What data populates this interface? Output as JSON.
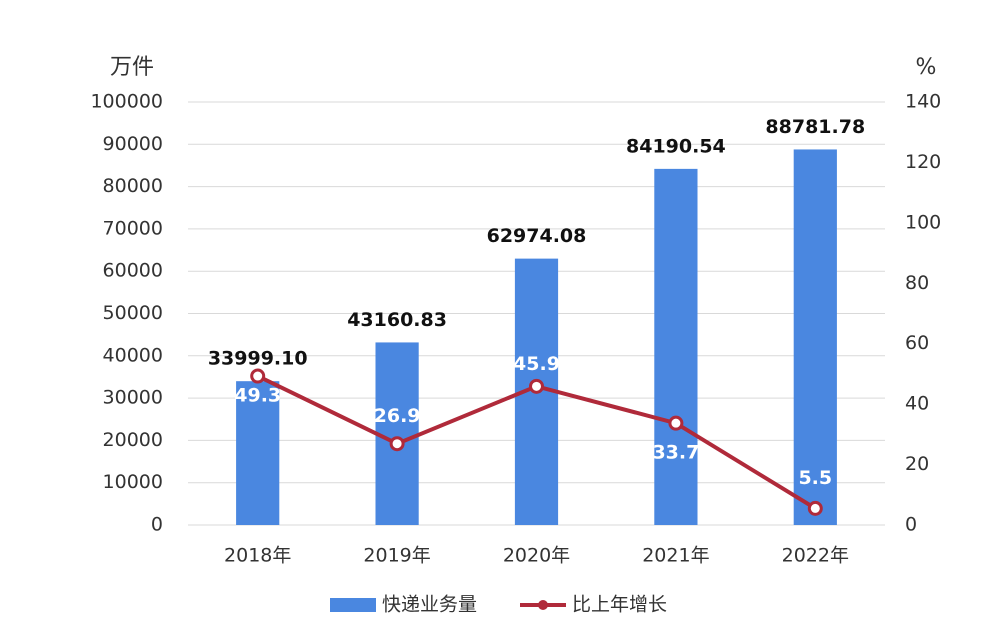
{
  "chart_data": {
    "type": "bar_line",
    "y_label": "万件",
    "y2_label": "%",
    "categories": [
      "2018年",
      "2019年",
      "2020年",
      "2021年",
      "2022年"
    ],
    "series": [
      {
        "name": "快递业务量",
        "color": "#4a87e0",
        "type": "bar",
        "values": [
          33999.1,
          43160.83,
          62974.08,
          84190.54,
          88781.78
        ],
        "value_labels": [
          "33999.10",
          "43160.83",
          "62974.08",
          "84190.54",
          "88781.78"
        ]
      },
      {
        "name": "比上年增长",
        "color": "#b02a3a",
        "type": "line",
        "axis": "y2",
        "values": [
          49.3,
          26.9,
          45.9,
          33.7,
          5.5
        ]
      }
    ],
    "ylim": [
      0,
      100000
    ],
    "yticks": [
      0,
      10000,
      20000,
      30000,
      40000,
      50000,
      60000,
      70000,
      80000,
      90000,
      100000
    ],
    "y2lim": [
      0,
      140
    ],
    "y2ticks": [
      0,
      20,
      40,
      60,
      80,
      100,
      120,
      140
    ],
    "grid": true
  }
}
